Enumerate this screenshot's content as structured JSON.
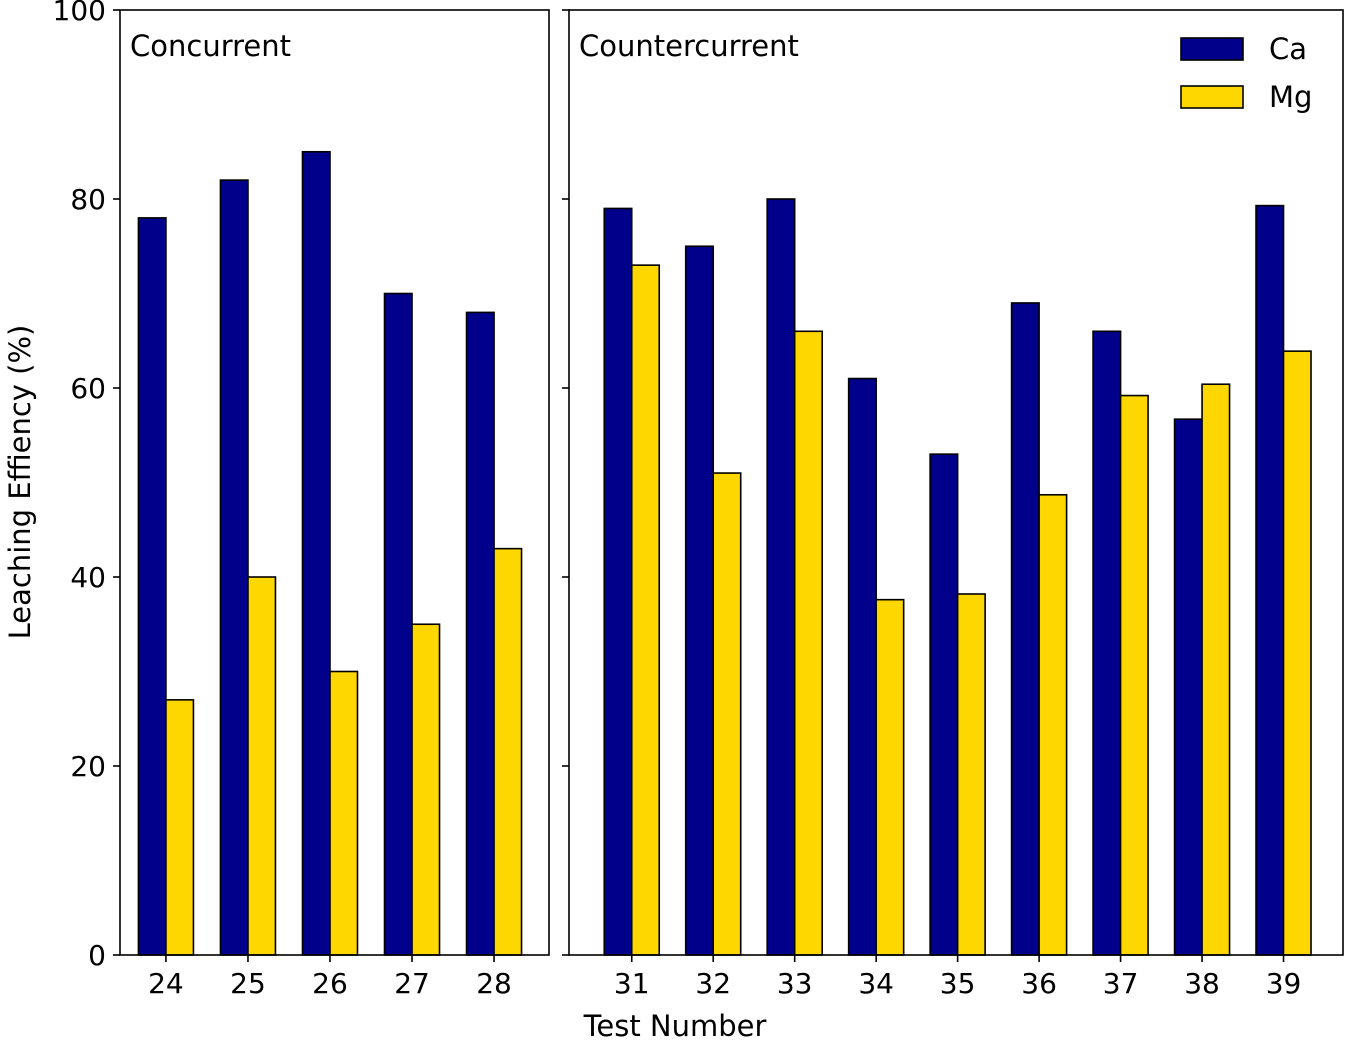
{
  "chart_data": {
    "type": "bar",
    "ylabel": "Leaching Effiency (%)",
    "xlabel": "Test Number",
    "ylim": [
      0,
      100
    ],
    "yticks": [
      0,
      20,
      40,
      60,
      80,
      100
    ],
    "colors": {
      "Ca": "#00008b",
      "Mg": "#ffd700"
    },
    "legend": {
      "position": "top-right",
      "entries": [
        "Ca",
        "Mg"
      ]
    },
    "panels": [
      {
        "title": "Concurrent",
        "categories": [
          "24",
          "25",
          "26",
          "27",
          "28"
        ],
        "series": [
          {
            "name": "Ca",
            "values": [
              78,
              82,
              85,
              70,
              68
            ]
          },
          {
            "name": "Mg",
            "values": [
              27,
              40,
              30,
              35,
              43
            ]
          }
        ]
      },
      {
        "title": "Countercurrent",
        "categories": [
          "31",
          "32",
          "33",
          "34",
          "35",
          "36",
          "37",
          "38",
          "39"
        ],
        "series": [
          {
            "name": "Ca",
            "values": [
              79,
              75,
              80,
              61,
              53,
              69,
              66,
              56.7,
              79.3
            ]
          },
          {
            "name": "Mg",
            "values": [
              73,
              51,
              66,
              37.6,
              38.2,
              48.7,
              59.2,
              60.4,
              63.9
            ]
          }
        ]
      }
    ]
  }
}
